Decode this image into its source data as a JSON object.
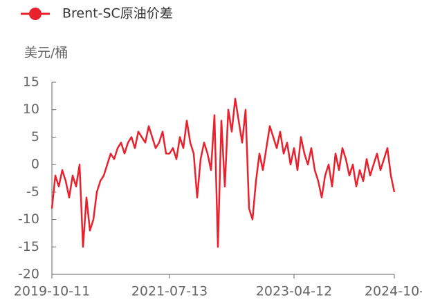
{
  "chart_data": {
    "type": "line",
    "series": [
      {
        "name": "Brent-SC原油价差",
        "color": "#e8212d",
        "values": [
          -8,
          -2,
          -4,
          -1,
          -3,
          -6,
          -2,
          -4,
          0,
          -15,
          -6,
          -12,
          -10,
          -5,
          -3,
          -2,
          0,
          2,
          1,
          3,
          4,
          2,
          4,
          5,
          3,
          6,
          5,
          4,
          7,
          5,
          3,
          4,
          6,
          2,
          2,
          3,
          1,
          5,
          3,
          8,
          4,
          2,
          -6,
          1,
          4,
          2,
          -1,
          9,
          -15,
          8,
          -4,
          10,
          6,
          12,
          8,
          4,
          10,
          -8,
          -10,
          -3,
          2,
          -1,
          3,
          7,
          5,
          3,
          6,
          2,
          4,
          0,
          3,
          -1,
          5,
          2,
          0,
          3,
          -1,
          -3,
          -6,
          -2,
          0,
          -4,
          2,
          -1,
          3,
          1,
          -2,
          0,
          -4,
          -1,
          -3,
          1,
          -2,
          0,
          2,
          -1,
          1,
          3,
          -2,
          -5
        ]
      }
    ],
    "categories": [
      "2019-10-11",
      null,
      null,
      null,
      null,
      null,
      null,
      null,
      null,
      null,
      null,
      null,
      null,
      null,
      null,
      null,
      null,
      null,
      null,
      null,
      null,
      null,
      null,
      null,
      null,
      null,
      null,
      null,
      null,
      null,
      null,
      null,
      null,
      null,
      "2021-07-13",
      null,
      null,
      null,
      null,
      null,
      null,
      null,
      null,
      null,
      null,
      null,
      null,
      null,
      null,
      null,
      null,
      null,
      null,
      null,
      null,
      null,
      null,
      null,
      null,
      null,
      null,
      null,
      null,
      null,
      null,
      null,
      null,
      null,
      null,
      null,
      "2023-04-12",
      null,
      null,
      null,
      null,
      null,
      null,
      null,
      null,
      null,
      null,
      null,
      null,
      null,
      null,
      null,
      null,
      null,
      null,
      null,
      null,
      null,
      null,
      null,
      null,
      null,
      null,
      null,
      null,
      "2024-10-"
    ],
    "y_label": "美元/桶",
    "ylim": [
      -20,
      15
    ],
    "yticks": [
      -20,
      -15,
      -10,
      -5,
      0,
      5,
      10,
      15
    ],
    "legend": "top-left"
  }
}
